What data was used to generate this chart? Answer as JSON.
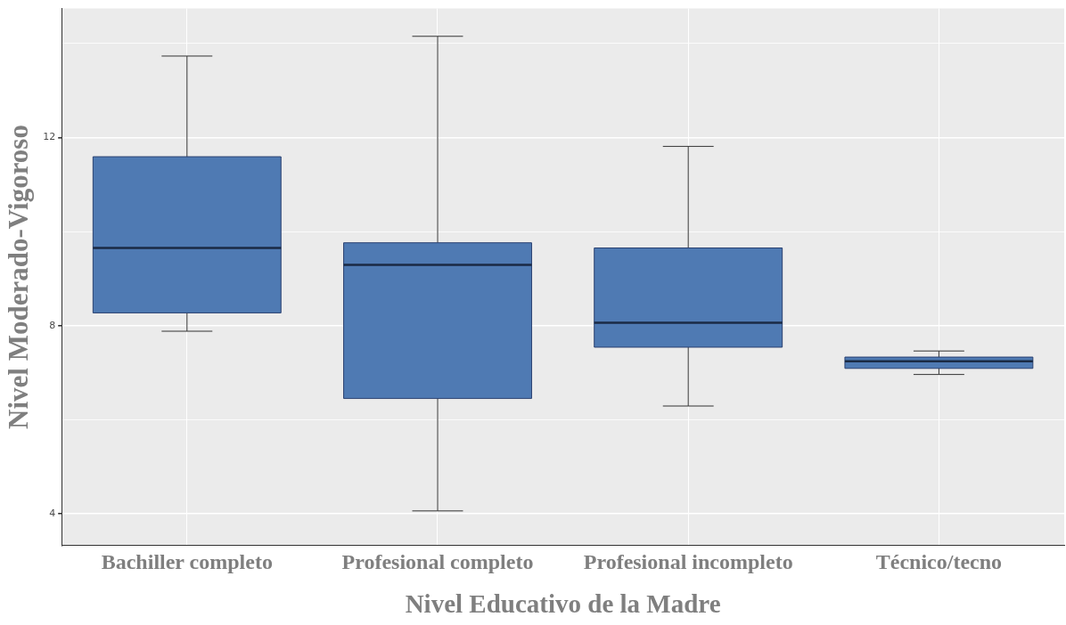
{
  "chart_data": {
    "type": "box",
    "xlabel": "Nivel Educativo de la Madre",
    "ylabel": "Nivel Moderado-Vigoroso",
    "categories": [
      "Bachiller completo",
      "Profesional completo",
      "Profesional incompleto",
      "Técnico/tecno"
    ],
    "series": [
      {
        "color": "#4f7ab3",
        "boxes": [
          {
            "low": 7.88,
            "q1": 8.27,
            "median": 9.65,
            "q3": 11.59,
            "high": 13.73
          },
          {
            "low": 4.06,
            "q1": 6.45,
            "median": 9.29,
            "q3": 9.76,
            "high": 14.15
          },
          {
            "low": 6.29,
            "q1": 7.54,
            "median": 8.06,
            "q3": 9.65,
            "high": 11.81
          },
          {
            "low": 6.96,
            "q1": 7.09,
            "median": 7.24,
            "q3": 7.33,
            "high": 7.46
          }
        ]
      }
    ],
    "ylim": [
      3.33,
      14.74
    ],
    "yticks": [
      4,
      {
        "value": 6,
        "label": null
      },
      8,
      {
        "value": 10,
        "label": null
      },
      12,
      {
        "value": 14,
        "label": null
      }
    ],
    "grid": true,
    "legend": false
  }
}
